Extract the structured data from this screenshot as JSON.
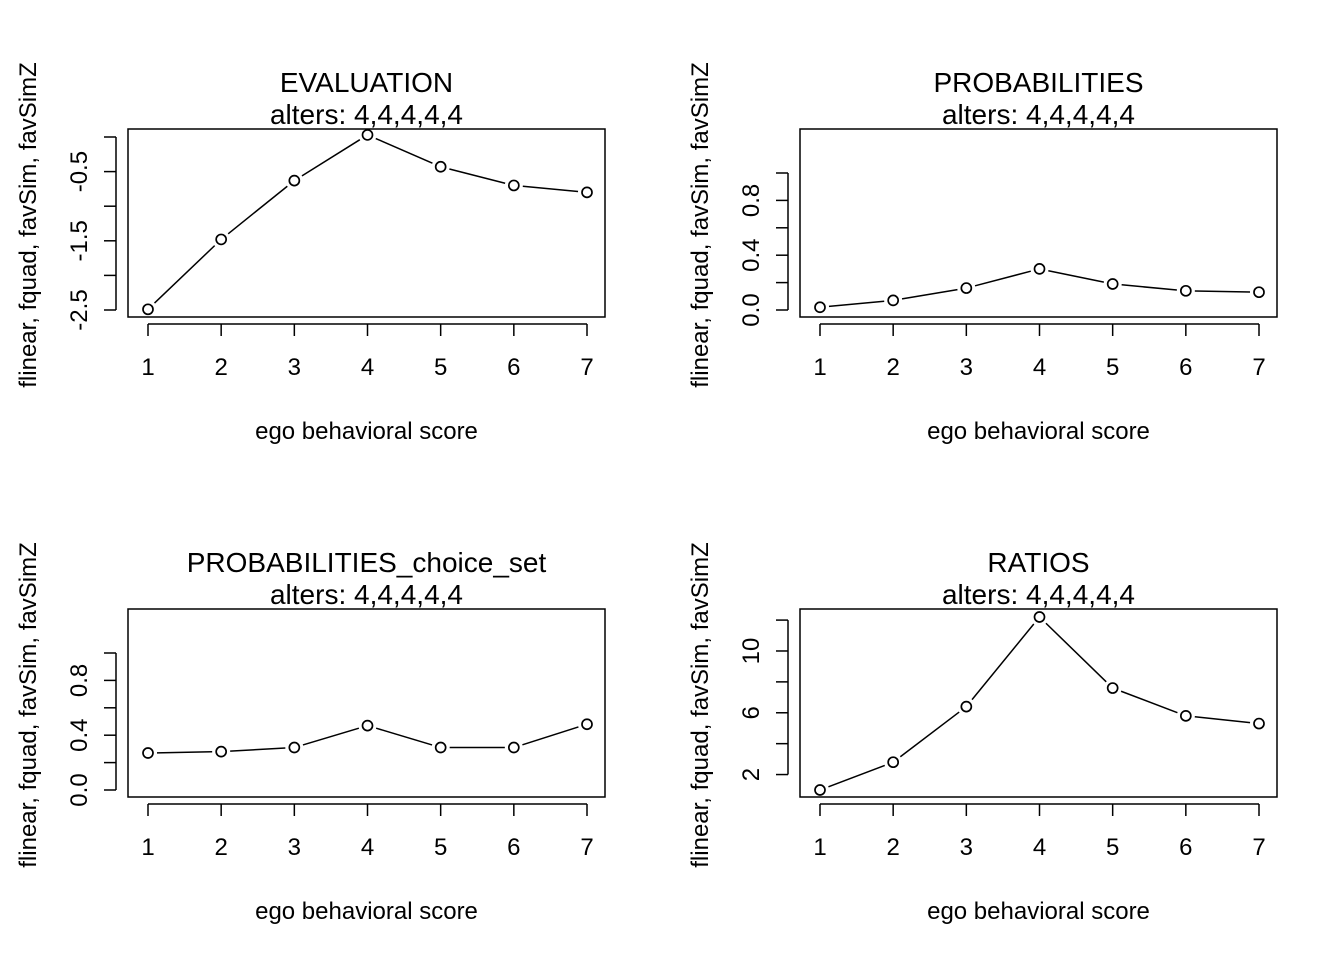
{
  "chart_data": [
    {
      "type": "line",
      "title": "EVALUATION",
      "subtitle": "alters: 4,4,4,4,4",
      "xlabel": "ego behavioral score",
      "ylabel": "flinear, fquad, favSim, favSimZ",
      "x": [
        1,
        2,
        3,
        4,
        5,
        6,
        7
      ],
      "series": [
        {
          "values": [
            -2.49,
            -1.48,
            -0.63,
            0.03,
            -0.43,
            -0.7,
            -0.8
          ]
        }
      ],
      "xlim": [
        1,
        7
      ],
      "ylim": [
        -2.5,
        0
      ],
      "y_ticks": [
        -2.5,
        -2,
        -1.5,
        -1,
        -0.5,
        0
      ],
      "y_tick_labels": [
        "-2.5",
        "",
        "-1.5",
        "",
        "-0.5",
        ""
      ],
      "x_ticks": [
        1,
        2,
        3,
        4,
        5,
        6,
        7
      ],
      "markers": "open-circle",
      "grid": false
    },
    {
      "type": "line",
      "title": "PROBABILITIES",
      "subtitle": "alters: 4,4,4,4,4",
      "xlabel": "ego behavioral score",
      "ylabel": "flinear, fquad, favSim, favSimZ",
      "x": [
        1,
        2,
        3,
        4,
        5,
        6,
        7
      ],
      "series": [
        {
          "values": [
            0.02,
            0.07,
            0.16,
            0.3,
            0.19,
            0.14,
            0.13
          ]
        }
      ],
      "xlim": [
        1,
        7
      ],
      "ylim": [
        0,
        1
      ],
      "y_ticks": [
        0,
        0.2,
        0.4,
        0.6,
        0.8,
        1.0
      ],
      "y_tick_labels": [
        "0.0",
        "",
        "0.4",
        "",
        "0.8",
        ""
      ],
      "x_ticks": [
        1,
        2,
        3,
        4,
        5,
        6,
        7
      ],
      "markers": "open-circle",
      "grid": false
    },
    {
      "type": "line",
      "title": "PROBABILITIES_choice_set",
      "subtitle": "alters: 4,4,4,4,4",
      "xlabel": "ego behavioral score",
      "ylabel": "flinear, fquad, favSim, favSimZ",
      "x": [
        1,
        2,
        3,
        4,
        5,
        6,
        7
      ],
      "series": [
        {
          "values": [
            0.27,
            0.28,
            0.31,
            0.47,
            0.31,
            0.31,
            0.48
          ]
        }
      ],
      "xlim": [
        1,
        7
      ],
      "ylim": [
        0,
        1
      ],
      "y_ticks": [
        0,
        0.2,
        0.4,
        0.6,
        0.8,
        1.0
      ],
      "y_tick_labels": [
        "0.0",
        "",
        "0.4",
        "",
        "0.8",
        ""
      ],
      "x_ticks": [
        1,
        2,
        3,
        4,
        5,
        6,
        7
      ],
      "markers": "open-circle",
      "grid": false
    },
    {
      "type": "line",
      "title": "RATIOS",
      "subtitle": "alters: 4,4,4,4,4",
      "xlabel": "ego behavioral score",
      "ylabel": "flinear, fquad, favSim, favSimZ",
      "x": [
        1,
        2,
        3,
        4,
        5,
        6,
        7
      ],
      "series": [
        {
          "values": [
            1.0,
            2.8,
            6.4,
            12.2,
            7.6,
            5.8,
            5.3
          ]
        }
      ],
      "xlim": [
        1,
        7
      ],
      "ylim": [
        1,
        12.2
      ],
      "y_ticks": [
        2,
        4,
        6,
        8,
        10,
        12
      ],
      "y_tick_labels": [
        "2",
        "",
        "6",
        "",
        "10",
        ""
      ],
      "x_ticks": [
        1,
        2,
        3,
        4,
        5,
        6,
        7
      ],
      "markers": "open-circle",
      "grid": false
    }
  ]
}
